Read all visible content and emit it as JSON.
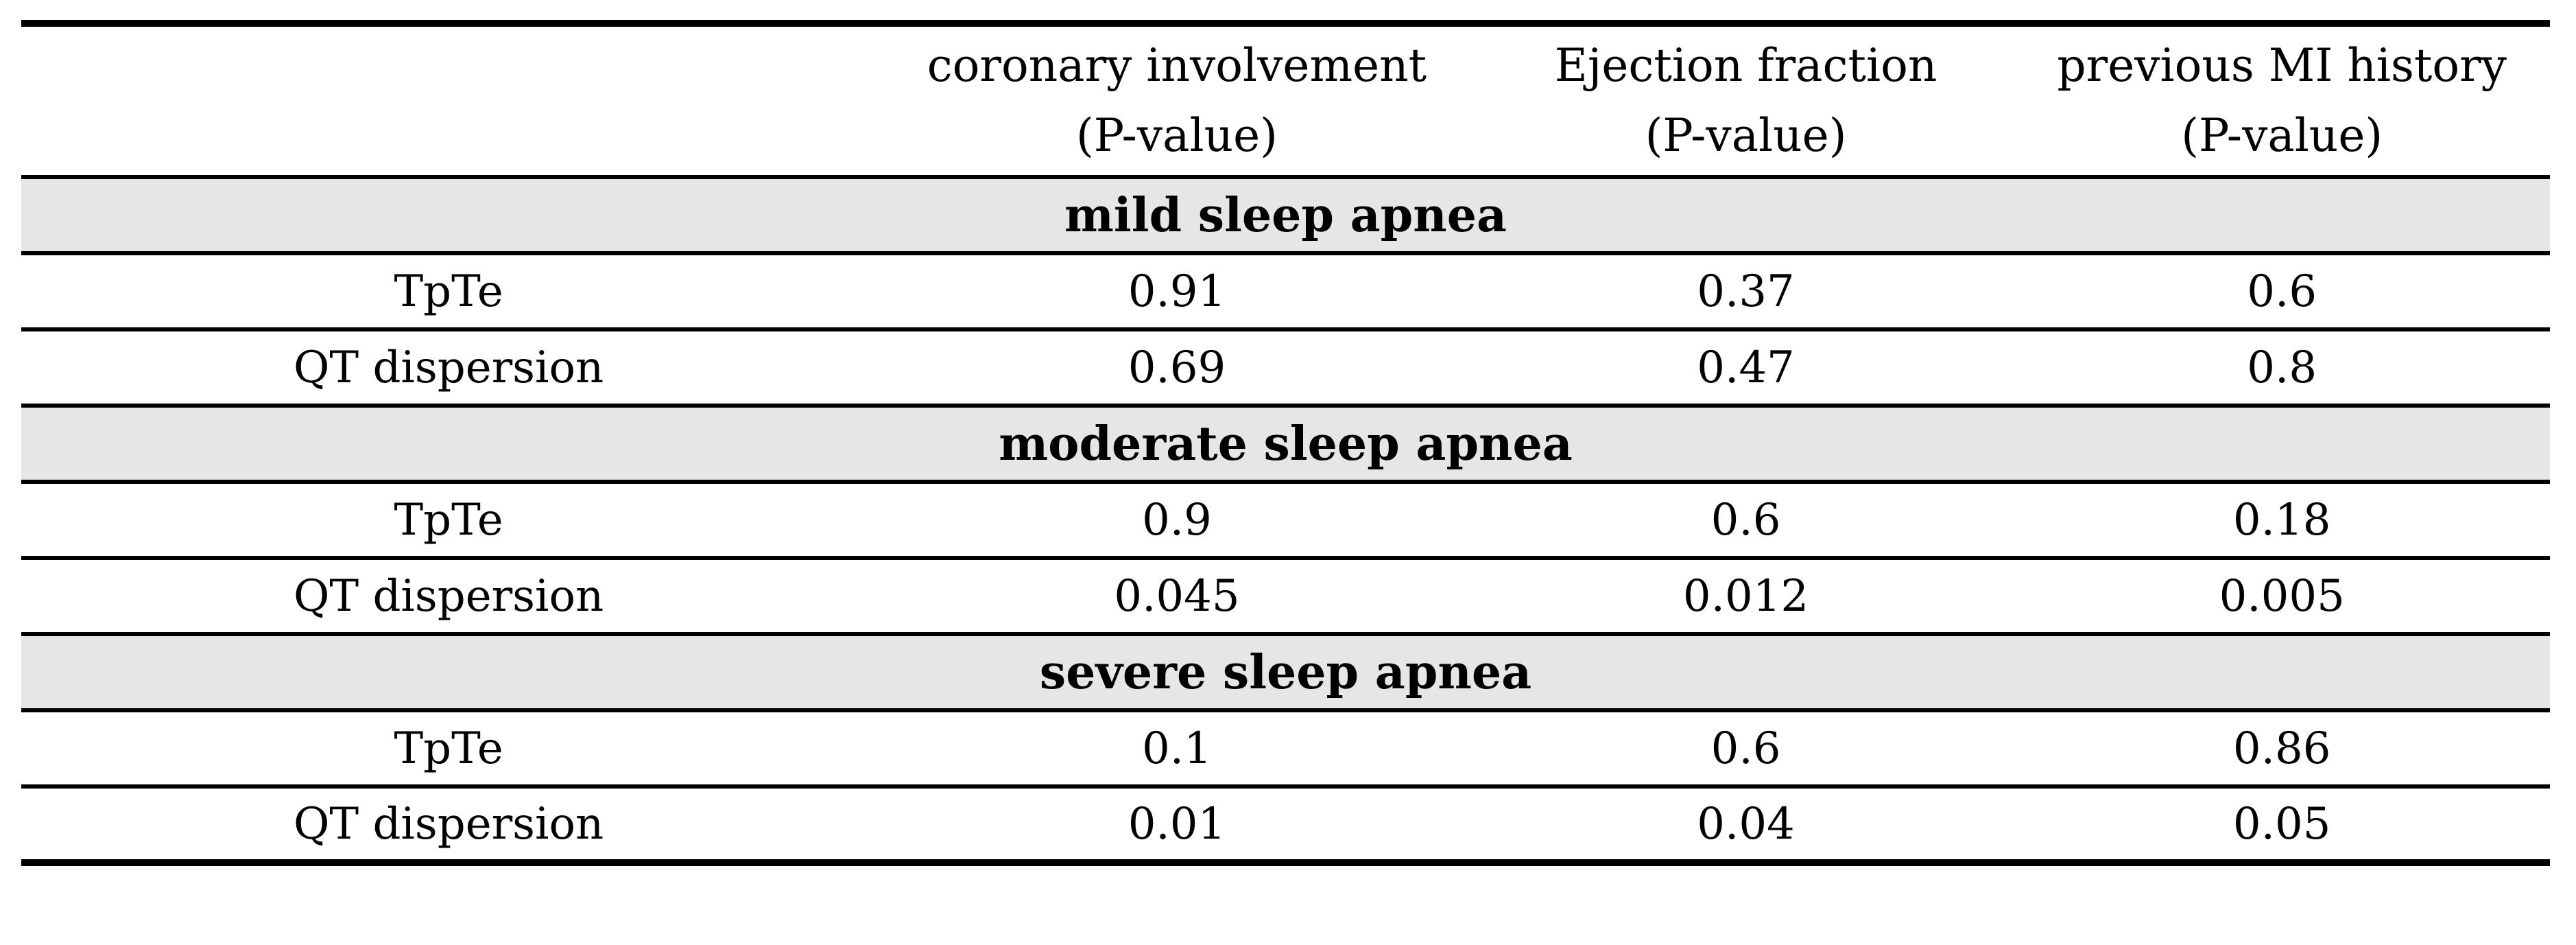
{
  "table": {
    "header": {
      "corner": "",
      "cols": [
        {
          "line1": "coronary involvement",
          "line2": "(P-value)"
        },
        {
          "line1": "Ejection fraction",
          "line2": "(P-value)"
        },
        {
          "line1": "previous MI history",
          "line2": "(P-value)"
        }
      ]
    },
    "sections": [
      {
        "title": "mild sleep apnea",
        "rows": [
          {
            "label": "TpTe",
            "values": [
              "0.91",
              "0.37",
              "0.6"
            ]
          },
          {
            "label": "QT dispersion",
            "values": [
              "0.69",
              "0.47",
              "0.8"
            ]
          }
        ]
      },
      {
        "title": "moderate sleep apnea",
        "rows": [
          {
            "label": "TpTe",
            "values": [
              "0.9",
              "0.6",
              "0.18"
            ]
          },
          {
            "label": "QT dispersion",
            "values": [
              "0.045",
              "0.012",
              "0.005"
            ]
          }
        ]
      },
      {
        "title": "severe sleep apnea",
        "rows": [
          {
            "label": "TpTe",
            "values": [
              "0.1",
              "0.6",
              "0.86"
            ]
          },
          {
            "label": "QT dispersion",
            "values": [
              "0.01",
              "0.04",
              "0.05"
            ]
          }
        ]
      }
    ],
    "colors": {
      "section_band_bg": "#e6e6e6",
      "rule": "#000000",
      "text": "#000000",
      "background": "#ffffff"
    }
  }
}
